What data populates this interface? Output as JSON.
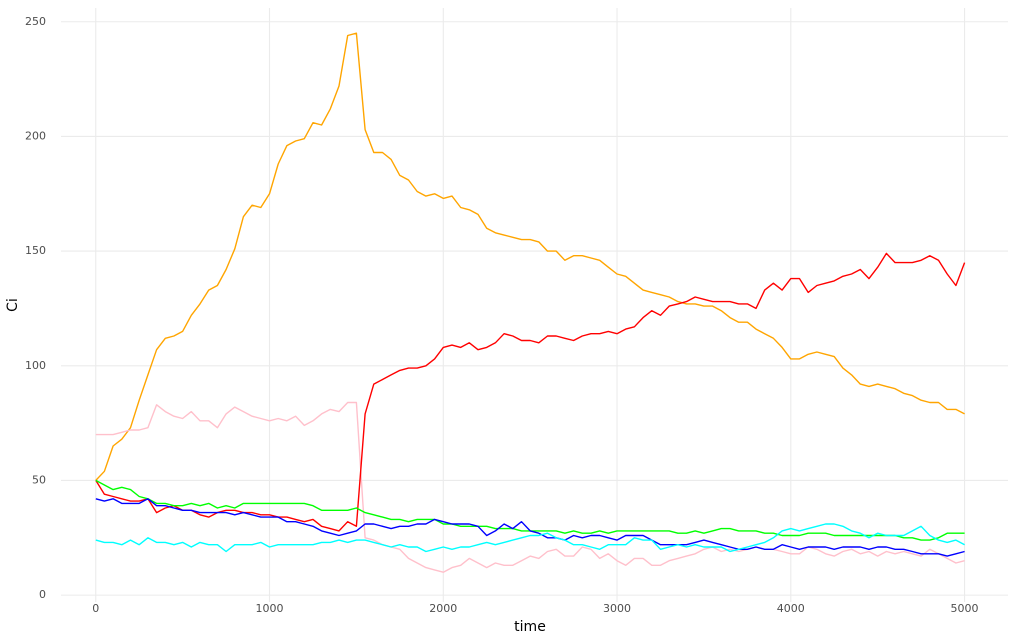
{
  "chart_data": {
    "type": "line",
    "x_label": "time",
    "y_label": "Ci",
    "x": [
      0,
      50,
      100,
      150,
      200,
      250,
      300,
      350,
      400,
      450,
      500,
      550,
      600,
      650,
      700,
      750,
      800,
      850,
      900,
      950,
      1000,
      1050,
      1100,
      1150,
      1200,
      1250,
      1300,
      1350,
      1400,
      1450,
      1500,
      1550,
      1600,
      1650,
      1700,
      1750,
      1800,
      1850,
      1900,
      1950,
      2000,
      2050,
      2100,
      2150,
      2200,
      2250,
      2300,
      2350,
      2400,
      2450,
      2500,
      2550,
      2600,
      2650,
      2700,
      2750,
      2800,
      2850,
      2900,
      2950,
      3000,
      3050,
      3100,
      3150,
      3200,
      3250,
      3300,
      3350,
      3400,
      3450,
      3500,
      3550,
      3600,
      3650,
      3700,
      3750,
      3800,
      3850,
      3900,
      3950,
      4000,
      4050,
      4100,
      4150,
      4200,
      4250,
      4300,
      4350,
      4400,
      4450,
      4500,
      4550,
      4600,
      4650,
      4700,
      4750,
      4800,
      4850,
      4900,
      4950,
      5000
    ],
    "series": [
      {
        "color": "#FFA500",
        "values": [
          50,
          54,
          65,
          68,
          73,
          85,
          96,
          107,
          112,
          113,
          115,
          122,
          127,
          133,
          135,
          142,
          151,
          165,
          170,
          169,
          175,
          188,
          196,
          198,
          199,
          206,
          205,
          212,
          222,
          244,
          245,
          203,
          193,
          193,
          190,
          183,
          181,
          176,
          174,
          175,
          173,
          174,
          169,
          168,
          166,
          160,
          158,
          157,
          156,
          155,
          155,
          154,
          150,
          150,
          146,
          148,
          148,
          147,
          146,
          143,
          140,
          139,
          136,
          133,
          132,
          131,
          130,
          128,
          127,
          127,
          126,
          126,
          124,
          121,
          119,
          119,
          116,
          114,
          112,
          108,
          103,
          103,
          105,
          106,
          105,
          104,
          99,
          96,
          92,
          91,
          92,
          91,
          90,
          88,
          87,
          85,
          84,
          84,
          81,
          81,
          79
        ]
      },
      {
        "color": "#FFC0CB",
        "values": [
          70,
          70,
          70,
          71,
          72,
          72,
          73,
          83,
          80,
          78,
          77,
          80,
          76,
          76,
          73,
          79,
          82,
          80,
          78,
          77,
          76,
          77,
          76,
          78,
          74,
          76,
          79,
          81,
          80,
          84,
          84,
          25,
          24,
          22,
          21,
          20,
          16,
          14,
          12,
          11,
          10,
          12,
          13,
          16,
          14,
          12,
          14,
          13,
          13,
          15,
          17,
          16,
          19,
          20,
          17,
          17,
          21,
          20,
          16,
          18,
          15,
          13,
          16,
          16,
          13,
          13,
          15,
          16,
          17,
          18,
          20,
          21,
          19,
          20,
          19,
          20,
          21,
          20,
          20,
          19,
          18,
          18,
          21,
          20,
          18,
          17,
          19,
          20,
          18,
          19,
          17,
          19,
          18,
          19,
          18,
          17,
          20,
          18,
          16,
          14,
          15
        ]
      },
      {
        "color": "#FF0000",
        "values": [
          50,
          44,
          43,
          42,
          41,
          41,
          42,
          36,
          38,
          39,
          37,
          37,
          35,
          34,
          36,
          37,
          37,
          36,
          36,
          35,
          35,
          34,
          34,
          33,
          32,
          33,
          30,
          29,
          28,
          32,
          30,
          79,
          92,
          94,
          96,
          98,
          99,
          99,
          100,
          103,
          108,
          109,
          108,
          110,
          107,
          108,
          110,
          114,
          113,
          111,
          111,
          110,
          113,
          113,
          112,
          111,
          113,
          114,
          114,
          115,
          114,
          116,
          117,
          121,
          124,
          122,
          126,
          127,
          128,
          130,
          129,
          128,
          128,
          128,
          127,
          127,
          125,
          133,
          136,
          133,
          138,
          138,
          132,
          135,
          136,
          137,
          139,
          140,
          142,
          138,
          143,
          149,
          145,
          145,
          145,
          146,
          148,
          146,
          140,
          135,
          145
        ]
      },
      {
        "color": "#00FF00",
        "values": [
          50,
          48,
          46,
          47,
          46,
          43,
          42,
          40,
          40,
          39,
          39,
          40,
          39,
          40,
          38,
          39,
          38,
          40,
          40,
          40,
          40,
          40,
          40,
          40,
          40,
          39,
          37,
          37,
          37,
          37,
          38,
          36,
          35,
          34,
          33,
          33,
          32,
          33,
          33,
          33,
          31,
          31,
          30,
          30,
          30,
          30,
          29,
          29,
          29,
          28,
          28,
          28,
          28,
          28,
          27,
          28,
          27,
          27,
          28,
          27,
          28,
          28,
          28,
          28,
          28,
          28,
          28,
          27,
          27,
          28,
          27,
          28,
          29,
          29,
          28,
          28,
          28,
          27,
          27,
          26,
          26,
          26,
          27,
          27,
          27,
          26,
          26,
          26,
          26,
          26,
          26,
          26,
          26,
          25,
          25,
          24,
          24,
          25,
          27,
          27,
          27
        ]
      },
      {
        "color": "#0000FF",
        "values": [
          42,
          41,
          42,
          40,
          40,
          40,
          42,
          39,
          39,
          38,
          37,
          37,
          36,
          36,
          36,
          36,
          35,
          36,
          35,
          34,
          34,
          34,
          32,
          32,
          31,
          30,
          28,
          27,
          26,
          27,
          28,
          31,
          31,
          30,
          29,
          30,
          30,
          31,
          31,
          33,
          32,
          31,
          31,
          31,
          30,
          26,
          28,
          31,
          29,
          32,
          28,
          27,
          25,
          25,
          24,
          26,
          25,
          26,
          26,
          25,
          24,
          26,
          26,
          26,
          24,
          22,
          22,
          22,
          22,
          23,
          24,
          23,
          22,
          21,
          20,
          20,
          21,
          20,
          20,
          22,
          21,
          20,
          21,
          21,
          21,
          20,
          21,
          21,
          21,
          20,
          21,
          21,
          20,
          20,
          19,
          18,
          18,
          18,
          17,
          18,
          19
        ]
      },
      {
        "color": "#00FFFF",
        "values": [
          24,
          23,
          23,
          22,
          24,
          22,
          25,
          23,
          23,
          22,
          23,
          21,
          23,
          22,
          22,
          19,
          22,
          22,
          22,
          23,
          21,
          22,
          22,
          22,
          22,
          22,
          23,
          23,
          24,
          23,
          24,
          24,
          23,
          22,
          21,
          22,
          21,
          21,
          19,
          20,
          21,
          20,
          21,
          21,
          22,
          23,
          22,
          23,
          24,
          25,
          26,
          26,
          27,
          25,
          24,
          22,
          22,
          21,
          20,
          22,
          22,
          22,
          25,
          24,
          24,
          20,
          21,
          22,
          21,
          22,
          21,
          21,
          21,
          19,
          20,
          21,
          22,
          23,
          25,
          28,
          29,
          28,
          29,
          30,
          31,
          31,
          30,
          28,
          27,
          25,
          27,
          26,
          26,
          26,
          28,
          30,
          26,
          24,
          23,
          24,
          22
        ]
      }
    ],
    "xlim": [
      -200,
      5250
    ],
    "ylim": [
      -3,
      256
    ],
    "xticks": [
      0,
      1000,
      2000,
      3000,
      4000,
      5000
    ],
    "yticks": [
      0,
      50,
      100,
      150,
      200,
      250
    ],
    "grid": true
  }
}
